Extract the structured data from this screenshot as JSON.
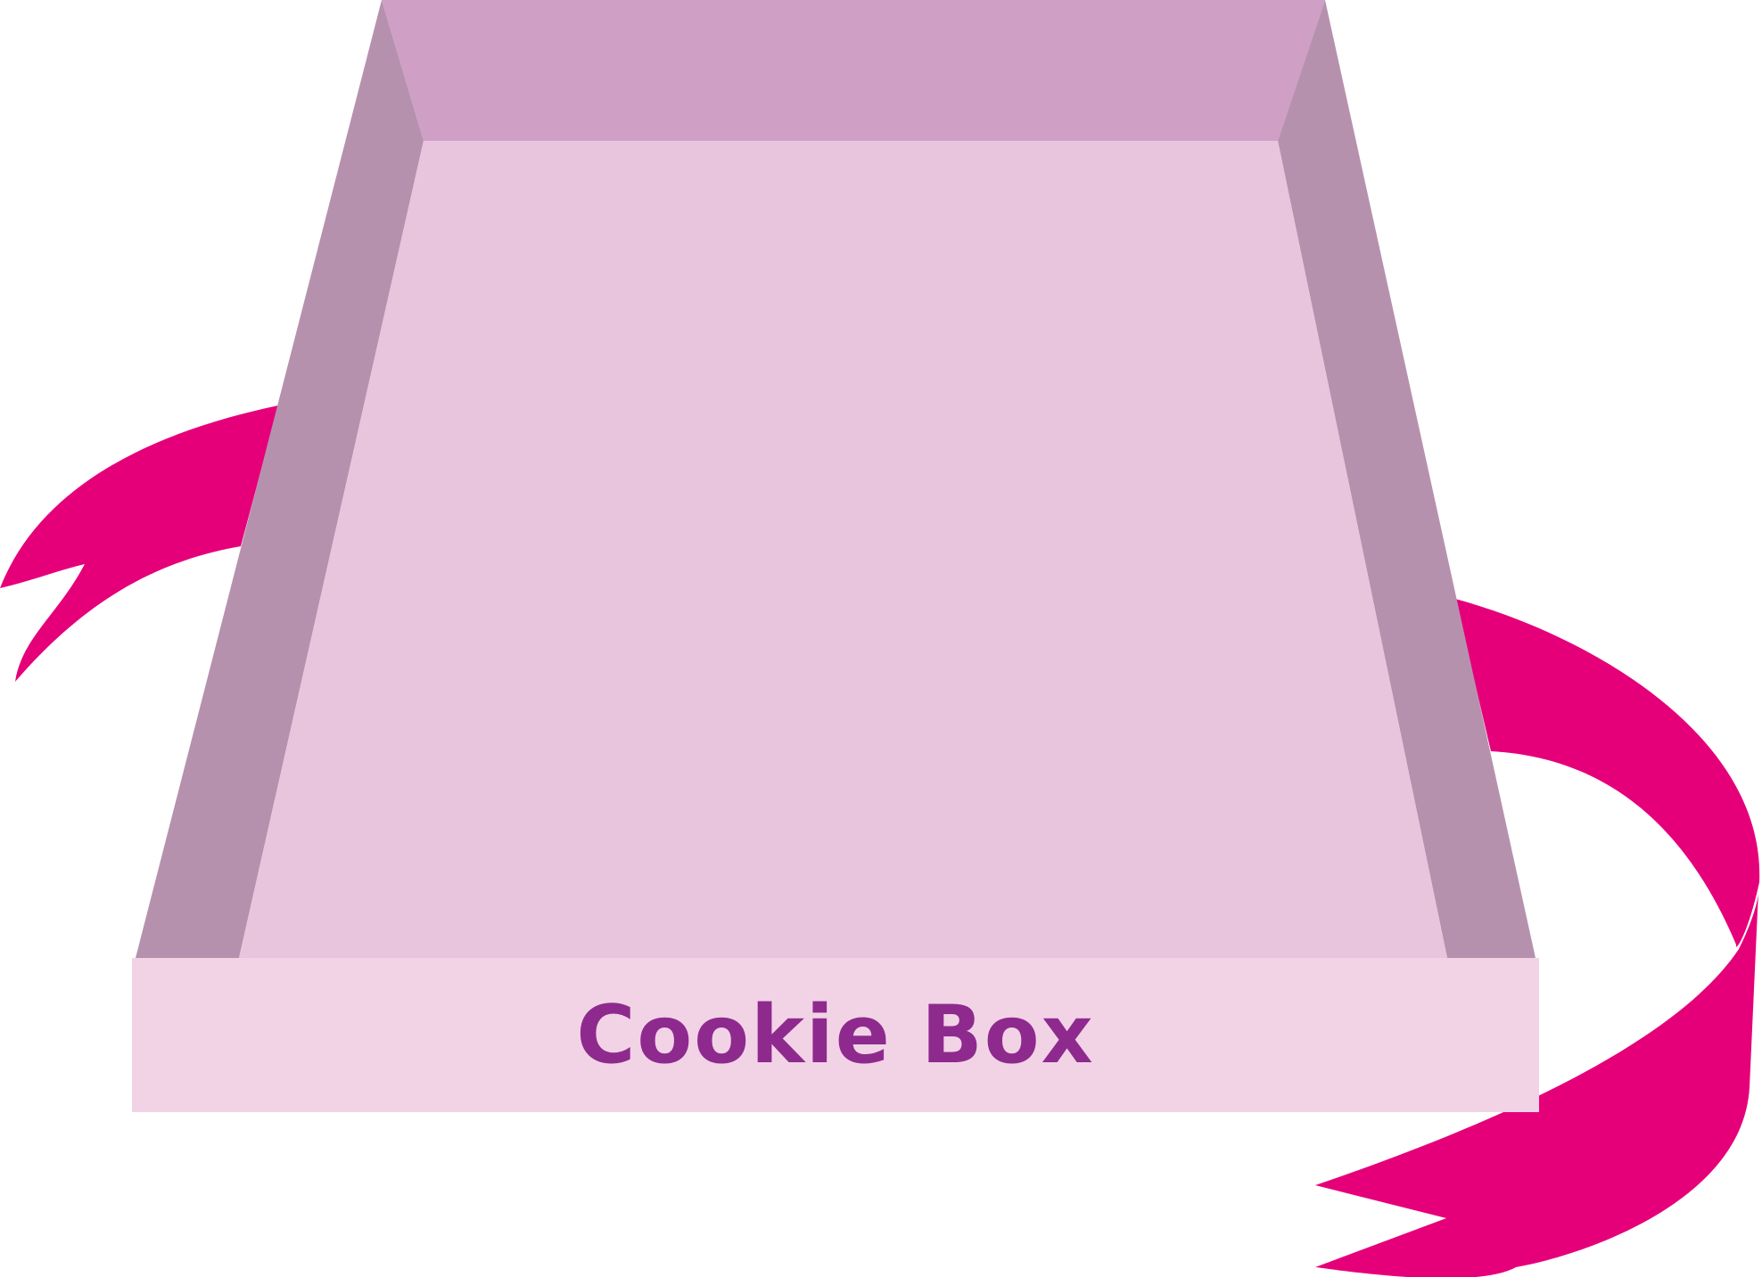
{
  "label": {
    "text": "Cookie Box"
  },
  "colors": {
    "ribbon": "#e5007a",
    "box_back_wall": "#cf9fc6",
    "box_side_walls": "#b691ae",
    "box_floor": "#e8c5dc",
    "box_front_panel": "#f2d3e6",
    "label_text": "#8e2a8e",
    "background": "#ffffff"
  },
  "icons": [
    "ribbon-left",
    "ribbon-right",
    "open-box"
  ]
}
